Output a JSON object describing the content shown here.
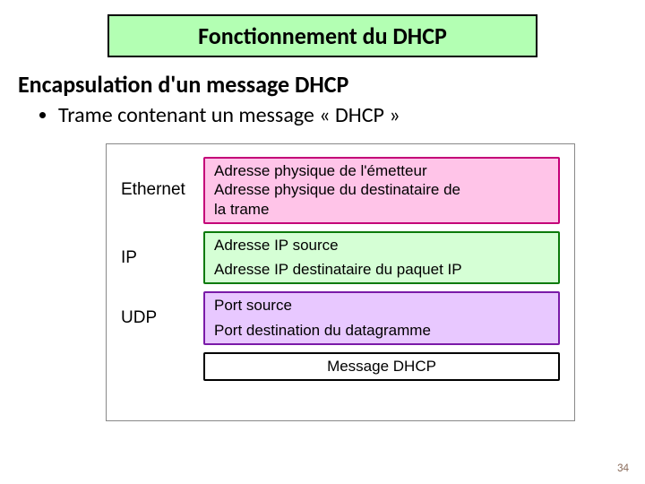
{
  "title": "Fonctionnement  du DHCP",
  "subtitle": "Encapsulation d'un message DHCP",
  "bullet": "Trame contenant un message « DHCP »",
  "page_number": "34",
  "diagram": {
    "border_color": "#888888",
    "layers": [
      {
        "label": "Ethernet",
        "lines": [
          "Adresse physique de l'émetteur",
          "Adresse physique du destinataire de",
          "la trame"
        ],
        "fill": "#ffc4e8",
        "border": "#c40078"
      },
      {
        "label": "IP",
        "lines": [
          "Adresse IP source",
          "~SPACER~",
          "Adresse IP destinataire du paquet IP"
        ],
        "fill": "#d5ffd5",
        "border": "#0a7a0a"
      },
      {
        "label": "UDP",
        "lines": [
          "Port source",
          "~SPACER~",
          "Port destination du datagramme"
        ],
        "fill": "#e8c8ff",
        "border": "#7a1aa8"
      },
      {
        "label": "",
        "lines": [
          "Message DHCP"
        ],
        "fill": "#ffffff",
        "border": "#000000",
        "center": true
      }
    ]
  },
  "style": {
    "title_bg": "#b3ffb3",
    "title_border": "#000000"
  }
}
